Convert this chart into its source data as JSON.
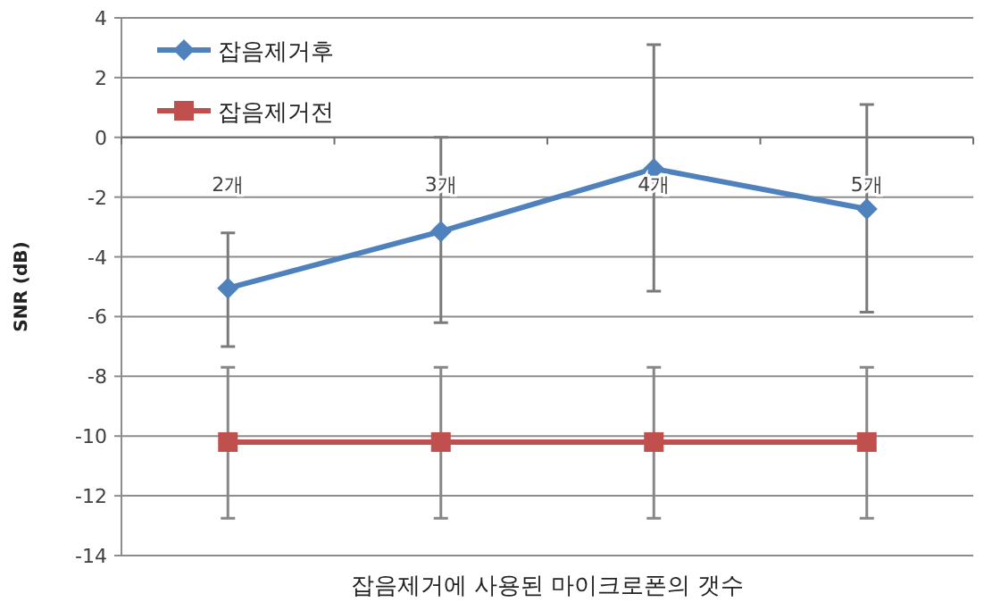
{
  "chart_data": {
    "type": "line",
    "xlabel": "잡음제거에 사용된 마이크로폰의 갯수",
    "ylabel": "SNR (dB)",
    "categories": [
      "2개",
      "3개",
      "4개",
      "5개"
    ],
    "series": [
      {
        "name": "잡음제거후",
        "color": "#4f81bd",
        "values": [
          -5.05,
          -3.15,
          -1.05,
          -2.4
        ],
        "errors": [
          [
            -7,
            -3.2
          ],
          [
            -6.2,
            0
          ],
          [
            -5.15,
            3.1
          ],
          [
            -5.85,
            1.1
          ]
        ],
        "marker": "diamond"
      },
      {
        "name": "잡음제거전",
        "color": "#c0504d",
        "values": [
          -10.2,
          -10.2,
          -10.2,
          -10.2
        ],
        "errors": [
          [
            -12.75,
            -7.7
          ],
          [
            -12.75,
            -7.7
          ],
          [
            -12.75,
            -7.7
          ],
          [
            -12.75,
            -7.7
          ]
        ],
        "marker": "square"
      }
    ],
    "ylim": [
      -14,
      4
    ],
    "yticks": [
      -14,
      -12,
      -10,
      -8,
      -6,
      -4,
      -2,
      0,
      2,
      4
    ],
    "grid": "y",
    "legend": "top left",
    "line_style": "solid"
  }
}
